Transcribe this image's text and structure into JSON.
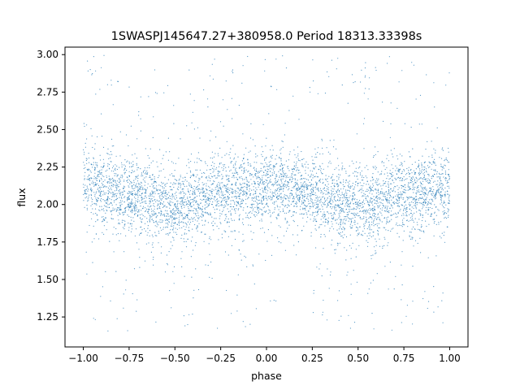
{
  "chart_data": {
    "type": "scatter",
    "title": "1SWASPJ145647.27+380958.0 Period 18313.33398s",
    "xlabel": "phase",
    "ylabel": "flux",
    "xlim": [
      -1.1,
      1.1
    ],
    "ylim": [
      1.05,
      3.05
    ],
    "x_ticks": [
      -1.0,
      -0.75,
      -0.5,
      -0.25,
      0.0,
      0.25,
      0.5,
      0.75,
      1.0
    ],
    "x_tick_labels": [
      "−1.00",
      "−0.75",
      "−0.50",
      "−0.25",
      "0.00",
      "0.25",
      "0.50",
      "0.75",
      "1.00"
    ],
    "y_ticks": [
      1.25,
      1.5,
      1.75,
      2.0,
      2.25,
      2.5,
      2.75,
      3.0
    ],
    "y_tick_labels": [
      "1.25",
      "1.50",
      "1.75",
      "2.00",
      "2.25",
      "2.50",
      "2.75",
      "3.00"
    ],
    "series": [
      {
        "color": "#1f77b4",
        "x_range": [
          -1.0,
          1.0
        ],
        "y_range": [
          1.15,
          3.0
        ],
        "model_trend": {
          "phase": [
            -1.0,
            -0.75,
            -0.5,
            -0.25,
            0.0,
            0.25,
            0.5,
            0.75,
            1.0
          ],
          "flux": [
            2.12,
            2.06,
            1.99,
            2.07,
            2.13,
            2.07,
            1.99,
            2.06,
            2.12
          ]
        },
        "core_spread": 0.13
      }
    ],
    "grid": false,
    "legend": "none"
  }
}
